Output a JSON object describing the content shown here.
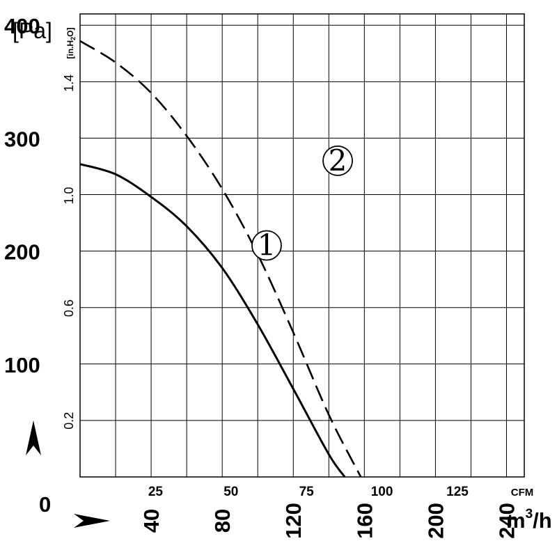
{
  "chart_data": {
    "type": "line",
    "title": "",
    "x_axis": {
      "unit_primary": "m³/h",
      "unit_primary_base": "m",
      "unit_primary_sup": "3",
      "unit_primary_tail": "/h",
      "range_m3h": [
        0,
        250
      ],
      "gridlines_m3h": [
        20,
        40,
        60,
        80,
        100,
        120,
        140,
        160,
        180,
        200,
        220,
        240
      ],
      "ticks_m3h": [
        "40",
        "80",
        "120",
        "160",
        "200",
        "240"
      ],
      "origin_label": "0",
      "unit_secondary": "CFM",
      "ticks_cfm": [
        "25",
        "50",
        "75",
        "100",
        "125"
      ]
    },
    "y_axis": {
      "unit_primary": "[Pa]",
      "range_pa": [
        0,
        410
      ],
      "gridlines_pa": [
        50,
        100,
        150,
        200,
        250,
        300,
        350,
        400
      ],
      "ticks_pa": [
        "100",
        "200",
        "300",
        "400"
      ],
      "unit_secondary_base": "[in.H",
      "unit_secondary_sub": "2",
      "unit_secondary_tail": "O]",
      "ticks_inh2o": [
        "0.2",
        "0.6",
        "1.0",
        "1.4"
      ]
    },
    "series": [
      {
        "name": "1",
        "style": "solid",
        "points": [
          [
            0,
            277
          ],
          [
            20,
            268
          ],
          [
            40,
            248
          ],
          [
            60,
            222
          ],
          [
            80,
            185
          ],
          [
            100,
            135
          ],
          [
            120,
            78
          ],
          [
            140,
            20
          ],
          [
            149,
            0
          ]
        ]
      },
      {
        "name": "2",
        "style": "dashed",
        "points": [
          [
            0,
            386
          ],
          [
            20,
            367
          ],
          [
            40,
            340
          ],
          [
            60,
            302
          ],
          [
            80,
            255
          ],
          [
            100,
            197
          ],
          [
            120,
            128
          ],
          [
            140,
            55
          ],
          [
            158,
            0
          ]
        ]
      }
    ],
    "curve_labels": [
      "1",
      "2"
    ],
    "direction_arrows": [
      "up",
      "right"
    ],
    "grid": true
  }
}
